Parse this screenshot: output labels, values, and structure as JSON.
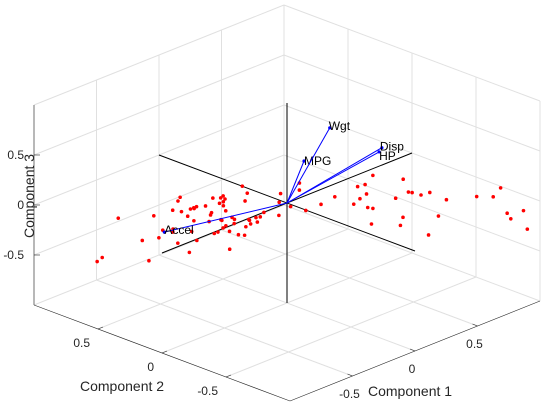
{
  "chart_data": {
    "type": "scatter",
    "title": "",
    "xlabel": "Component 1",
    "ylabel": "Component 2",
    "zlabel": "Component 3",
    "xlim": [
      -1,
      1
    ],
    "ylim": [
      -1,
      1
    ],
    "zlim": [
      -1,
      1
    ],
    "xticks": [
      {
        "value": -0.5,
        "label": "-0.5"
      },
      {
        "value": 0,
        "label": "0"
      },
      {
        "value": 0.5,
        "label": "0.5"
      }
    ],
    "yticks": [
      {
        "value": -0.5,
        "label": "-0.5"
      },
      {
        "value": 0,
        "label": "0"
      },
      {
        "value": 0.5,
        "label": "0.5"
      }
    ],
    "zticks": [
      {
        "value": -0.5,
        "label": "-0.5"
      },
      {
        "value": 0,
        "label": "0"
      },
      {
        "value": 0.5,
        "label": "0.5"
      }
    ],
    "grid": true,
    "view": "3d-biplot",
    "colors": {
      "vectors": "#0000ff",
      "points": "#ff0000",
      "axes": "#000000",
      "grid": "#e0e0e0"
    },
    "vectors": [
      {
        "name": "Accel",
        "x": -0.92,
        "y": 0.06,
        "z": 0.14
      },
      {
        "name": "MPG",
        "x": -0.12,
        "y": -0.25,
        "z": 0.6
      },
      {
        "name": "Wgt",
        "x": 0.26,
        "y": -0.08,
        "z": 0.66
      },
      {
        "name": "Disp",
        "x": 0.37,
        "y": -0.38,
        "z": 0.55
      },
      {
        "name": "HP",
        "x": 0.44,
        "y": -0.29,
        "z": 0.43
      }
    ],
    "points_screen_fraction_note": "",
    "points": [
      [
        -0.1,
        0.4,
        -0.13
      ],
      [
        -0.08,
        0.44,
        -0.12
      ],
      [
        -0.05,
        0.45,
        -0.12
      ],
      [
        -0.11,
        0.42,
        -0.15
      ],
      [
        -0.15,
        0.49,
        -0.19
      ],
      [
        -0.2,
        0.53,
        -0.21
      ],
      [
        -0.13,
        0.37,
        -0.14
      ],
      [
        -0.25,
        0.51,
        -0.18
      ],
      [
        -0.3,
        0.6,
        -0.21
      ],
      [
        -0.22,
        0.62,
        -0.13
      ],
      [
        -0.07,
        0.66,
        -0.33
      ],
      [
        -0.02,
        0.57,
        -0.36
      ],
      [
        -0.35,
        0.51,
        -0.05
      ],
      [
        -0.11,
        0.37,
        -0.35
      ],
      [
        -0.05,
        0.46,
        -0.37
      ],
      [
        -0.18,
        0.6,
        -0.33
      ],
      [
        -0.03,
        0.47,
        -0.46
      ],
      [
        0.05,
        0.38,
        -0.53
      ],
      [
        -0.02,
        0.52,
        -0.53
      ],
      [
        -0.11,
        0.62,
        -0.42
      ],
      [
        -0.06,
        0.55,
        -0.42
      ],
      [
        0.06,
        0.38,
        -0.45
      ],
      [
        0.07,
        0.3,
        -0.37
      ],
      [
        -0.04,
        0.41,
        -0.46
      ],
      [
        -0.07,
        0.5,
        -0.51
      ],
      [
        0.02,
        0.43,
        -0.38
      ],
      [
        -0.02,
        0.36,
        -0.48
      ],
      [
        -0.24,
        0.47,
        -0.48
      ],
      [
        -0.35,
        0.55,
        -0.38
      ],
      [
        -0.16,
        0.36,
        -0.26
      ],
      [
        -0.07,
        0.23,
        -0.24
      ],
      [
        -0.06,
        0.42,
        -0.25
      ],
      [
        0.1,
        0.34,
        -0.36
      ],
      [
        -0.39,
        0.62,
        -0.45
      ],
      [
        -0.02,
        0.41,
        -0.33
      ],
      [
        -0.24,
        0.59,
        -0.25
      ],
      [
        -0.03,
        0.55,
        -0.2
      ],
      [
        -0.14,
        0.57,
        -0.24
      ],
      [
        -0.4,
        0.65,
        -0.24
      ],
      [
        -0.31,
        0.46,
        -0.56
      ],
      [
        -0.24,
        0.51,
        -0.41
      ],
      [
        0.15,
        0.21,
        -0.3
      ],
      [
        -0.12,
        0.48,
        -0.29
      ],
      [
        -0.3,
        0.56,
        -0.52
      ],
      [
        0.11,
        0.52,
        -0.51
      ],
      [
        -0.1,
        0.35,
        -0.58
      ],
      [
        0.13,
        0.42,
        -0.44
      ],
      [
        0.17,
        0.45,
        -0.51
      ],
      [
        -0.4,
        0.58,
        -0.35
      ],
      [
        -0.4,
        0.74,
        -0.53
      ],
      [
        -0.7,
        0.76,
        -0.56
      ],
      [
        -0.4,
        0.5,
        -0.3
      ],
      [
        -0.24,
        0.25,
        0.04
      ],
      [
        -0.5,
        0.83,
        -0.3
      ],
      [
        -0.72,
        0.78,
        -0.6
      ],
      [
        -0.48,
        0.61,
        -0.63
      ],
      [
        0.08,
        0.05,
        -0.1
      ],
      [
        0.14,
        0.04,
        0.04
      ],
      [
        0.28,
        -0.1,
        -0.03
      ],
      [
        0.4,
        -0.24,
        -0.13
      ],
      [
        0.43,
        -0.24,
        -0.31
      ],
      [
        0.36,
        -0.17,
        -0.11
      ],
      [
        0.49,
        -0.47,
        0.09
      ],
      [
        0.37,
        -0.26,
        0.03
      ],
      [
        0.39,
        -0.29,
        0.22
      ],
      [
        0.43,
        -0.15,
        -0.1
      ],
      [
        0.35,
        -0.21,
        0.09
      ],
      [
        0.38,
        -0.3,
        -0.1
      ],
      [
        0.42,
        -0.2,
        0.07
      ],
      [
        0.52,
        -0.4,
        0.17
      ],
      [
        0.47,
        -0.39,
        0.0
      ],
      [
        0.53,
        -0.46,
        0.06
      ],
      [
        0.59,
        -0.33,
        -0.28
      ],
      [
        0.59,
        -0.31,
        -0.37
      ],
      [
        0.56,
        -0.5,
        0.04
      ],
      [
        0.61,
        -0.52,
        0.05
      ],
      [
        0.62,
        -0.64,
        0.03
      ],
      [
        0.72,
        -0.48,
        -0.26
      ],
      [
        0.6,
        -0.52,
        -0.37
      ],
      [
        0.77,
        -0.73,
        0.03
      ],
      [
        0.85,
        -0.89,
        -0.1
      ],
      [
        0.9,
        -0.79,
        0.08
      ],
      [
        0.92,
        -0.85,
        -0.21
      ],
      [
        0.96,
        -0.91,
        -0.12
      ],
      [
        0.96,
        -0.94,
        -0.29
      ],
      [
        0.81,
        -0.82,
        0.05
      ],
      [
        0.13,
        -0.02,
        -0.13
      ],
      [
        0.05,
        0.11,
        -0.07
      ],
      [
        0.02,
        0.33,
        -0.07
      ],
      [
        0.0,
        0.05,
        0.07
      ],
      [
        0.12,
        0.02,
        0.13
      ],
      [
        -0.1,
        0.23,
        -0.04
      ],
      [
        -0.05,
        0.16,
        -0.19
      ],
      [
        0.18,
        -0.09,
        -0.06
      ],
      [
        -0.03,
        0.32,
        0.03
      ],
      [
        0.02,
        0.2,
        -0.2
      ]
    ]
  }
}
